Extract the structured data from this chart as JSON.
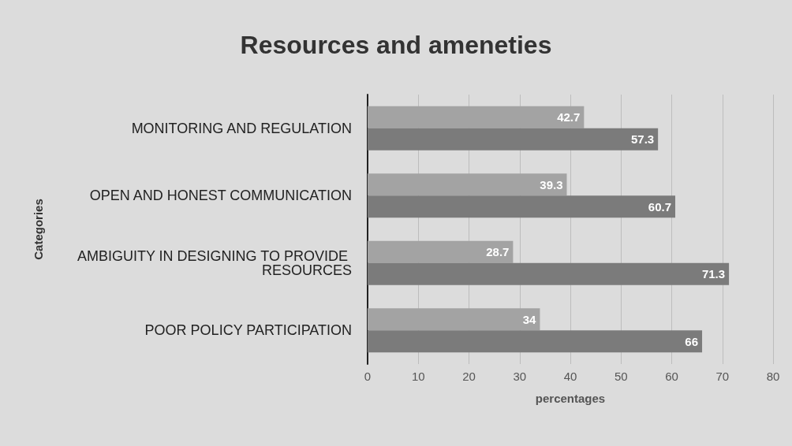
{
  "chart_data": {
    "type": "bar",
    "orientation": "horizontal",
    "title": "Resources and ameneties",
    "xlabel": "percentages",
    "ylabel": "Categories",
    "categories": [
      "MONITORING AND REGULATION",
      "OPEN AND HONEST COMMUNICATION",
      "AMBIGUITY IN DESIGNING TO PROVIDE RESOURCES",
      "POOR POLICY PARTICIPATION"
    ],
    "series": [
      {
        "color": "#a3a3a3",
        "values": [
          42.7,
          39.3,
          28.7,
          34
        ]
      },
      {
        "color": "#7b7b7b",
        "values": [
          57.3,
          60.7,
          71.3,
          66
        ]
      }
    ],
    "xlim": [
      0,
      80
    ],
    "xticks": [
      0,
      10,
      20,
      30,
      40,
      50,
      60,
      70,
      80
    ],
    "grid": "x",
    "data_labels": true
  }
}
